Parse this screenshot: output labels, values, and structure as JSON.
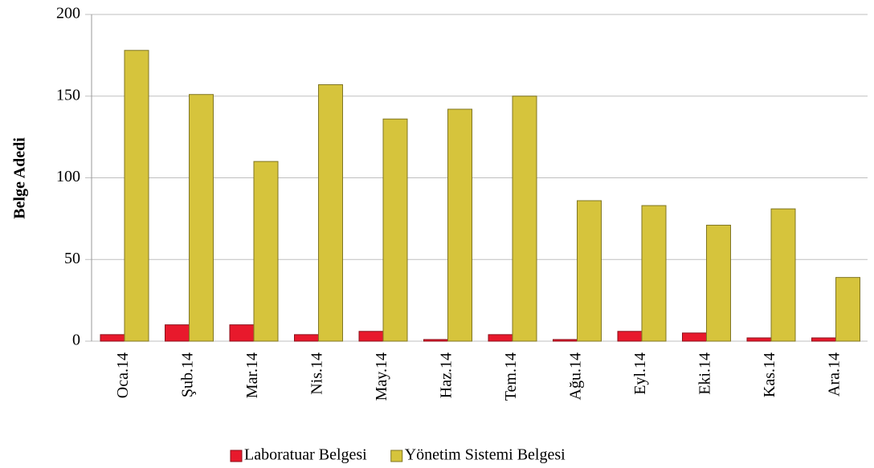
{
  "chart_data": {
    "type": "bar",
    "y_label": "Belge Adedi",
    "categories": [
      "Oca.14",
      "Şub.14",
      "Mar.14",
      "Nis.14",
      "May.14",
      "Haz.14",
      "Tem.14",
      "Ağu.14",
      "Eyl.14",
      "Eki.14",
      "Kas.14",
      "Ara.14"
    ],
    "series": [
      {
        "name": "Laboratuar Belgesi",
        "color": "#e8192c",
        "values": [
          4,
          10,
          10,
          4,
          6,
          1,
          4,
          1,
          6,
          5,
          2,
          2
        ]
      },
      {
        "name": "Yönetim Sistemi Belgesi",
        "color": "#d6c43c",
        "values": [
          178,
          151,
          110,
          157,
          136,
          142,
          150,
          86,
          83,
          71,
          81,
          39
        ]
      }
    ],
    "ylim": [
      0,
      200
    ],
    "yticks": [
      0,
      50,
      100,
      150,
      200
    ],
    "grid": true,
    "legend": "bottom"
  }
}
